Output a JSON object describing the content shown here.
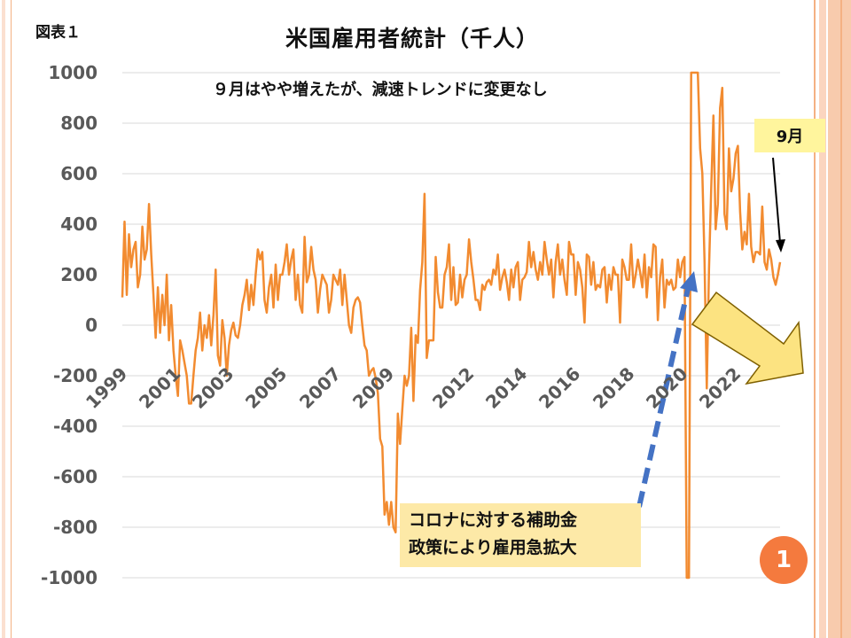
{
  "slide": {
    "figure_label": "図表１",
    "title": "米国雇用者統計（千人）",
    "subtitle": "９月はやや増えたが、減速トレンドに変更なし",
    "callout_month": "9月",
    "note_line1": "コロナに対する補助金",
    "note_line2": "政策により雇用急拡大",
    "page_badge": "1",
    "colors": {
      "line": "#f28b30",
      "arrow_dashed": "#4472c4",
      "trend_arrow_fill": "#fce381",
      "trend_arrow_stroke": "#7f6000",
      "badge": "#f47a3e",
      "stripe": "#f8cbad"
    }
  },
  "chart_data": {
    "type": "line",
    "x_unit": "month",
    "x_start": "1999-01",
    "x_end": "2023-09",
    "ylim": [
      -1000,
      1000
    ],
    "y_ticks": [
      "1000",
      "800",
      "600",
      "400",
      "200",
      "0",
      "-200",
      "-400",
      "-600",
      "-800",
      "-1000"
    ],
    "x_ticks": [
      "1999",
      "2001",
      "2003",
      "2005",
      "2007",
      "2009",
      "2012",
      "2014",
      "2016",
      "2018",
      "2020",
      "2022"
    ],
    "grid": "horizontal",
    "series": [
      {
        "annual_approx": {
          "1999": [
            110,
            410,
            120,
            360,
            230,
            300,
            330,
            150,
            200,
            390,
            260,
            300
          ],
          "2000": [
            480,
            280,
            120,
            -50,
            150,
            -30,
            120,
            0,
            200,
            -60,
            80,
            -100
          ],
          "2001": [
            -200,
            -280,
            -60,
            -100,
            -150,
            -200,
            -310,
            -310,
            -200,
            -100,
            -50,
            50
          ],
          "2002": [
            -100,
            0,
            -50,
            40,
            -80,
            40,
            220,
            -120,
            -160,
            20,
            -50,
            -200
          ],
          "2003": [
            -80,
            -20,
            10,
            -40,
            -50,
            0,
            80,
            120,
            180,
            60,
            160,
            80
          ],
          "2004": [
            200,
            300,
            260,
            290,
            100,
            50,
            150,
            200,
            70,
            240,
            100,
            200
          ],
          "2005": [
            200,
            250,
            320,
            200,
            260,
            300,
            100,
            200,
            80,
            50,
            350,
            170
          ],
          "2006": [
            200,
            310,
            220,
            180,
            50,
            140,
            200,
            180,
            160,
            50,
            100,
            200
          ],
          "2007": [
            180,
            160,
            220,
            80,
            200,
            100,
            0,
            -30,
            70,
            100,
            110,
            90
          ],
          "2008": [
            0,
            -80,
            -100,
            -200,
            -180,
            -170,
            -210,
            -270,
            -450,
            -480,
            -750,
            -700
          ],
          "2009": [
            -790,
            -700,
            -800,
            -820,
            -350,
            -470,
            -330,
            -200,
            -240,
            -200,
            -10,
            -300
          ],
          "2010": [
            -40,
            -70,
            140,
            250,
            520,
            -130,
            -60,
            -60,
            -60,
            270,
            130,
            70
          ],
          "2011": [
            70,
            200,
            230,
            320,
            100,
            230,
            80,
            90,
            200,
            110,
            180,
            200
          ],
          "2012": [
            340,
            250,
            180,
            100,
            100,
            60,
            160,
            140,
            170,
            180,
            160,
            220
          ],
          "2013": [
            200,
            280,
            140,
            190,
            220,
            170,
            100,
            220,
            150,
            230,
            250,
            100
          ],
          "2014": [
            180,
            190,
            210,
            330,
            230,
            290,
            220,
            180,
            250,
            200,
            330,
            260
          ],
          "2015": [
            200,
            260,
            110,
            250,
            320,
            200,
            260,
            180,
            120,
            330,
            280,
            280
          ],
          "2016": [
            120,
            250,
            220,
            150,
            10,
            280,
            270,
            160,
            250,
            140,
            160,
            150
          ],
          "2017": [
            220,
            230,
            90,
            200,
            140,
            230,
            200,
            200,
            10,
            260,
            230,
            180
          ],
          "2018": [
            180,
            320,
            150,
            200,
            260,
            210,
            150,
            280,
            110,
            230,
            190,
            320
          ],
          "2019": [
            310,
            20,
            190,
            260,
            70,
            180,
            160,
            180,
            140,
            150,
            260,
            190
          ],
          "2020": [
            250,
            270,
            -1000,
            -1000,
            1000,
            1000,
            1000,
            1000,
            700,
            600,
            250,
            -250
          ],
          "2021": [
            220,
            540,
            830,
            380,
            480,
            860,
            940,
            440,
            380,
            700,
            530,
            580
          ],
          "2022": [
            680,
            710,
            450,
            300,
            370,
            320,
            520,
            310,
            250,
            290,
            290,
            280
          ],
          "2023": [
            470,
            250,
            220,
            300,
            260,
            190,
            160,
            200,
            250
          ]
        }
      }
    ]
  }
}
